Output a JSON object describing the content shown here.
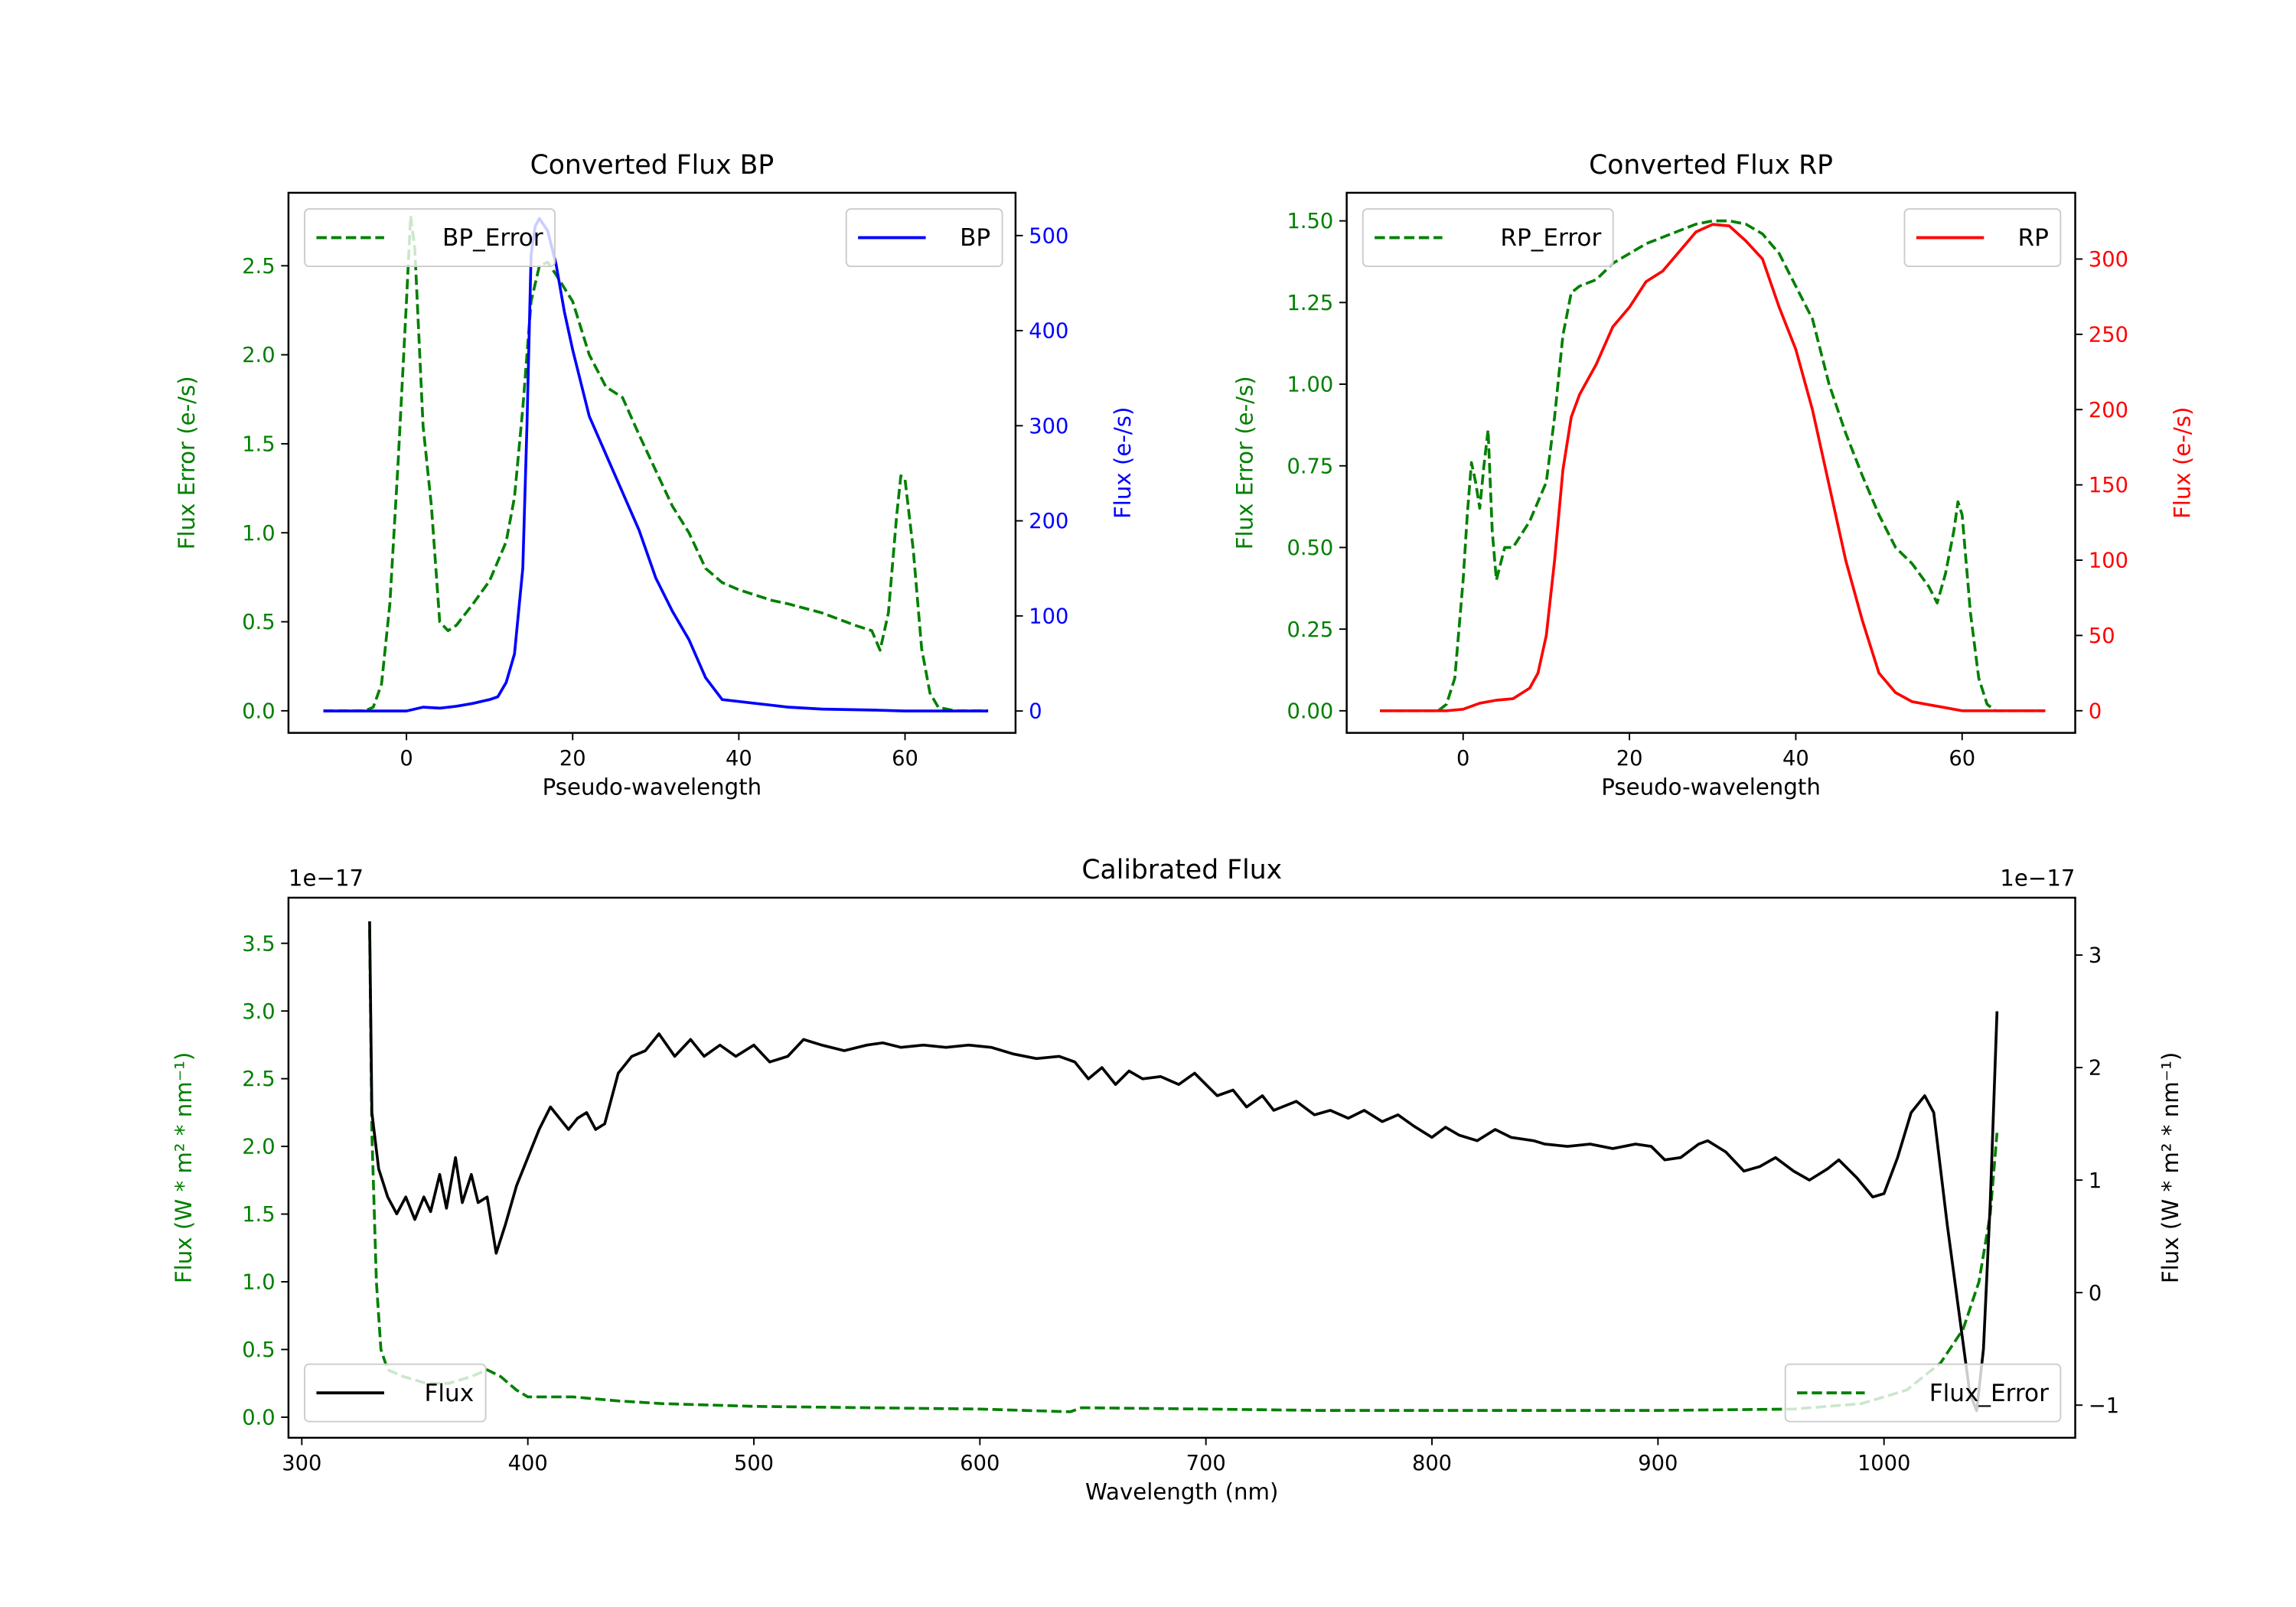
{
  "chart_data": [
    {
      "type": "line",
      "title": "Converted Flux BP",
      "xlabel": "Pseudo-wavelength",
      "ylabel_left": "Flux Error (e-/s)",
      "ylabel_right": "Flux (e-/s)",
      "xlim": [
        -14.2,
        73.3
      ],
      "ylim_left": [
        -0.124,
        2.91
      ],
      "ylim_right": [
        -23,
        545
      ],
      "xticks": [
        0,
        20,
        40,
        60
      ],
      "xtick_labels": [
        "0",
        "20",
        "40",
        "60"
      ],
      "yticks_left": [
        0,
        0.5,
        1,
        1.5,
        2,
        2.5
      ],
      "ytick_labels_left": [
        "0.0",
        "0.5",
        "1.0",
        "1.5",
        "2.0",
        "2.5"
      ],
      "yticks_right": [
        0,
        100,
        200,
        300,
        400,
        500
      ],
      "ytick_labels_right": [
        "0",
        "100",
        "200",
        "300",
        "400",
        "500"
      ],
      "left_color": "#008000",
      "right_color": "#0000ff",
      "legend_left": {
        "label": "BP_Error",
        "placement": "upper-left"
      },
      "legend_right": {
        "label": "BP",
        "placement": "upper-right"
      },
      "series": [
        {
          "name": "BP_Error",
          "axis": "left",
          "style": "dashed",
          "color": "#008000",
          "x": [
            -10,
            -5,
            -4,
            -3,
            -2,
            -1,
            0,
            0.5,
            1,
            2,
            3,
            4,
            5,
            6,
            8,
            10,
            12,
            13,
            14,
            15,
            16,
            17,
            18,
            20,
            22,
            24,
            26,
            28,
            30,
            32,
            34,
            36,
            38,
            40,
            42,
            44,
            46,
            50,
            54,
            56,
            57,
            58,
            59,
            59.5,
            60,
            61,
            62,
            63,
            64,
            66,
            70
          ],
          "y": [
            0,
            0,
            0.02,
            0.15,
            0.6,
            1.4,
            2.3,
            2.78,
            2.6,
            1.6,
            1.15,
            0.5,
            0.45,
            0.48,
            0.6,
            0.73,
            0.95,
            1.2,
            1.7,
            2.3,
            2.5,
            2.52,
            2.45,
            2.3,
            2.0,
            1.82,
            1.76,
            1.55,
            1.35,
            1.15,
            1.0,
            0.8,
            0.72,
            0.68,
            0.65,
            0.62,
            0.6,
            0.55,
            0.48,
            0.45,
            0.34,
            0.55,
            1.1,
            1.32,
            1.3,
            0.9,
            0.35,
            0.1,
            0.02,
            0,
            0
          ]
        },
        {
          "name": "BP",
          "axis": "right",
          "style": "solid",
          "color": "#0000ff",
          "x": [
            -10,
            -5,
            0,
            1,
            2,
            4,
            6,
            8,
            10,
            11,
            12,
            13,
            14,
            14.5,
            15,
            15.5,
            16,
            17,
            18,
            19,
            20,
            22,
            24,
            26,
            28,
            30,
            32,
            34,
            36,
            38,
            40,
            42,
            46,
            50,
            56,
            60,
            70
          ],
          "y": [
            0,
            0,
            0,
            2,
            4,
            3,
            5,
            8,
            12,
            15,
            30,
            60,
            150,
            300,
            480,
            510,
            518,
            505,
            470,
            420,
            380,
            310,
            270,
            230,
            190,
            140,
            105,
            75,
            35,
            12,
            10,
            8,
            4,
            2,
            1,
            0,
            0
          ]
        }
      ]
    },
    {
      "type": "line",
      "title": "Converted Flux RP",
      "xlabel": "Pseudo-wavelength",
      "ylabel_left": "Flux Error (e-/s)",
      "ylabel_right": "Flux (e-/s)",
      "xlim": [
        -14.0,
        73.6
      ],
      "ylim_left": [
        -0.0676,
        1.586
      ],
      "ylim_right": [
        -14.7,
        344
      ],
      "xticks": [
        0,
        20,
        40,
        60
      ],
      "xtick_labels": [
        "0",
        "20",
        "40",
        "60"
      ],
      "yticks_left": [
        0,
        0.25,
        0.5,
        0.75,
        1,
        1.25,
        1.5
      ],
      "ytick_labels_left": [
        "0.00",
        "0.25",
        "0.50",
        "0.75",
        "1.00",
        "1.25",
        "1.50"
      ],
      "yticks_right": [
        0,
        50,
        100,
        150,
        200,
        250,
        300
      ],
      "ytick_labels_right": [
        "0",
        "50",
        "100",
        "150",
        "200",
        "250",
        "300"
      ],
      "left_color": "#008000",
      "right_color": "#ff0000",
      "legend_left": {
        "label": "RP_Error",
        "placement": "upper-left"
      },
      "legend_right": {
        "label": "RP",
        "placement": "upper-right"
      },
      "series": [
        {
          "name": "RP_Error",
          "axis": "left",
          "style": "dashed",
          "color": "#008000",
          "x": [
            -10,
            -3,
            -2,
            -1,
            0,
            0.5,
            1,
            1.5,
            2,
            2.5,
            3,
            3.5,
            4,
            5,
            6,
            8,
            10,
            11,
            12,
            13,
            14,
            16,
            18,
            20,
            22,
            24,
            26,
            28,
            30,
            32,
            34,
            36,
            38,
            40,
            42,
            44,
            46,
            48,
            50,
            52,
            54,
            56,
            57,
            58,
            59,
            59.5,
            60,
            61,
            62,
            63,
            64,
            70
          ],
          "y": [
            0,
            0,
            0.02,
            0.1,
            0.4,
            0.6,
            0.76,
            0.7,
            0.62,
            0.75,
            0.86,
            0.55,
            0.4,
            0.5,
            0.5,
            0.58,
            0.7,
            0.9,
            1.15,
            1.28,
            1.3,
            1.32,
            1.37,
            1.4,
            1.43,
            1.45,
            1.47,
            1.49,
            1.5,
            1.5,
            1.49,
            1.46,
            1.4,
            1.3,
            1.2,
            1.0,
            0.85,
            0.72,
            0.6,
            0.5,
            0.45,
            0.38,
            0.33,
            0.42,
            0.55,
            0.64,
            0.6,
            0.3,
            0.1,
            0.02,
            0,
            0
          ]
        },
        {
          "name": "RP",
          "axis": "right",
          "style": "solid",
          "color": "#ff0000",
          "x": [
            -10,
            -2,
            0,
            2,
            4,
            6,
            8,
            9,
            10,
            11,
            12,
            13,
            14,
            16,
            18,
            20,
            22,
            24,
            26,
            28,
            30,
            32,
            34,
            36,
            38,
            40,
            42,
            44,
            46,
            48,
            50,
            52,
            54,
            56,
            58,
            60,
            70
          ],
          "y": [
            0,
            0,
            1,
            5,
            7,
            8,
            15,
            25,
            50,
            100,
            160,
            195,
            210,
            230,
            255,
            268,
            285,
            292,
            305,
            318,
            323,
            322,
            312,
            300,
            268,
            240,
            200,
            150,
            100,
            60,
            25,
            12,
            6,
            4,
            2,
            0,
            0
          ]
        }
      ]
    },
    {
      "type": "line",
      "title": "Calibrated Flux",
      "xlabel": "Wavelength (nm)",
      "ylabel_left": "Flux (W * m² * nm⁻¹)",
      "ylabel_right": "Flux (W * m² * nm⁻¹)",
      "offset_left": "1e−17",
      "offset_right": "1e−17",
      "xlim": [
        294.1,
        1084.6
      ],
      "ylim_left": [
        -0.152,
        3.837
      ],
      "ylim_right": [
        -1.29,
        3.51
      ],
      "xticks": [
        300,
        400,
        500,
        600,
        700,
        800,
        900,
        1000
      ],
      "xtick_labels": [
        "300",
        "400",
        "500",
        "600",
        "700",
        "800",
        "900",
        "1000"
      ],
      "yticks_left": [
        0,
        0.5,
        1,
        1.5,
        2,
        2.5,
        3,
        3.5
      ],
      "ytick_labels_left": [
        "0.0",
        "0.5",
        "1.0",
        "1.5",
        "2.0",
        "2.5",
        "3.0",
        "3.5"
      ],
      "yticks_right": [
        -1,
        0,
        1,
        2,
        3
      ],
      "ytick_labels_right": [
        "−1",
        "0",
        "1",
        "2",
        "3"
      ],
      "left_color": "#008000",
      "right_color": "#000000",
      "legend_left": {
        "label": "Flux",
        "placement": "lower-left"
      },
      "legend_right": {
        "label": "Flux_Error",
        "placement": "lower-right"
      },
      "series": [
        {
          "name": "Flux_Error",
          "axis": "left",
          "style": "dashed",
          "color": "#008000",
          "x": [
            330,
            331,
            333,
            335,
            338,
            345,
            355,
            365,
            375,
            382,
            388,
            395,
            400,
            420,
            440,
            460,
            500,
            550,
            600,
            640,
            645,
            700,
            750,
            800,
            900,
            960,
            990,
            1010,
            1025,
            1035,
            1042,
            1047,
            1050
          ],
          "y": [
            3.6,
            2.1,
            1.0,
            0.5,
            0.35,
            0.3,
            0.25,
            0.25,
            0.3,
            0.35,
            0.3,
            0.2,
            0.15,
            0.15,
            0.12,
            0.1,
            0.08,
            0.07,
            0.06,
            0.04,
            0.07,
            0.06,
            0.05,
            0.05,
            0.05,
            0.06,
            0.1,
            0.2,
            0.4,
            0.65,
            1.0,
            1.5,
            2.1
          ]
        },
        {
          "name": "Flux",
          "axis": "right",
          "style": "solid",
          "color": "#000000",
          "x": [
            330,
            331,
            334,
            338,
            342,
            346,
            350,
            354,
            357,
            361,
            364,
            368,
            371,
            375,
            378,
            382,
            386,
            390,
            395,
            400,
            405,
            410,
            414,
            418,
            422,
            426,
            430,
            434,
            440,
            446,
            452,
            458,
            465,
            472,
            478,
            485,
            492,
            500,
            507,
            515,
            522,
            530,
            540,
            550,
            557,
            565,
            575,
            585,
            595,
            605,
            615,
            625,
            635,
            642,
            648,
            654,
            660,
            666,
            672,
            680,
            688,
            695,
            700,
            705,
            712,
            718,
            725,
            730,
            740,
            748,
            755,
            763,
            770,
            778,
            785,
            792,
            800,
            806,
            812,
            820,
            828,
            835,
            845,
            850,
            860,
            870,
            880,
            890,
            897,
            903,
            910,
            918,
            922,
            930,
            938,
            945,
            952,
            960,
            967,
            975,
            980,
            988,
            995,
            1000,
            1006,
            1012,
            1018,
            1022,
            1028,
            1034,
            1038,
            1041,
            1044,
            1047,
            1050
          ],
          "y": [
            3.3,
            1.6,
            1.1,
            0.85,
            0.7,
            0.85,
            0.65,
            0.85,
            0.72,
            1.05,
            0.75,
            1.2,
            0.8,
            1.05,
            0.8,
            0.85,
            0.35,
            0.6,
            0.95,
            1.2,
            1.45,
            1.65,
            1.55,
            1.45,
            1.55,
            1.6,
            1.45,
            1.5,
            1.95,
            2.1,
            2.15,
            2.3,
            2.1,
            2.25,
            2.1,
            2.2,
            2.1,
            2.2,
            2.05,
            2.1,
            2.25,
            2.2,
            2.15,
            2.2,
            2.22,
            2.18,
            2.2,
            2.18,
            2.2,
            2.18,
            2.12,
            2.08,
            2.1,
            2.05,
            1.9,
            2.0,
            1.85,
            1.97,
            1.9,
            1.92,
            1.85,
            1.95,
            1.85,
            1.75,
            1.8,
            1.65,
            1.75,
            1.62,
            1.7,
            1.58,
            1.62,
            1.55,
            1.62,
            1.52,
            1.58,
            1.48,
            1.38,
            1.47,
            1.4,
            1.35,
            1.45,
            1.38,
            1.35,
            1.32,
            1.3,
            1.32,
            1.28,
            1.32,
            1.3,
            1.18,
            1.2,
            1.32,
            1.35,
            1.25,
            1.08,
            1.12,
            1.2,
            1.08,
            1.0,
            1.1,
            1.18,
            1.02,
            0.85,
            0.88,
            1.2,
            1.6,
            1.75,
            1.6,
            0.6,
            -0.3,
            -0.9,
            -1.05,
            -0.5,
            0.8,
            2.5
          ]
        }
      ]
    }
  ]
}
